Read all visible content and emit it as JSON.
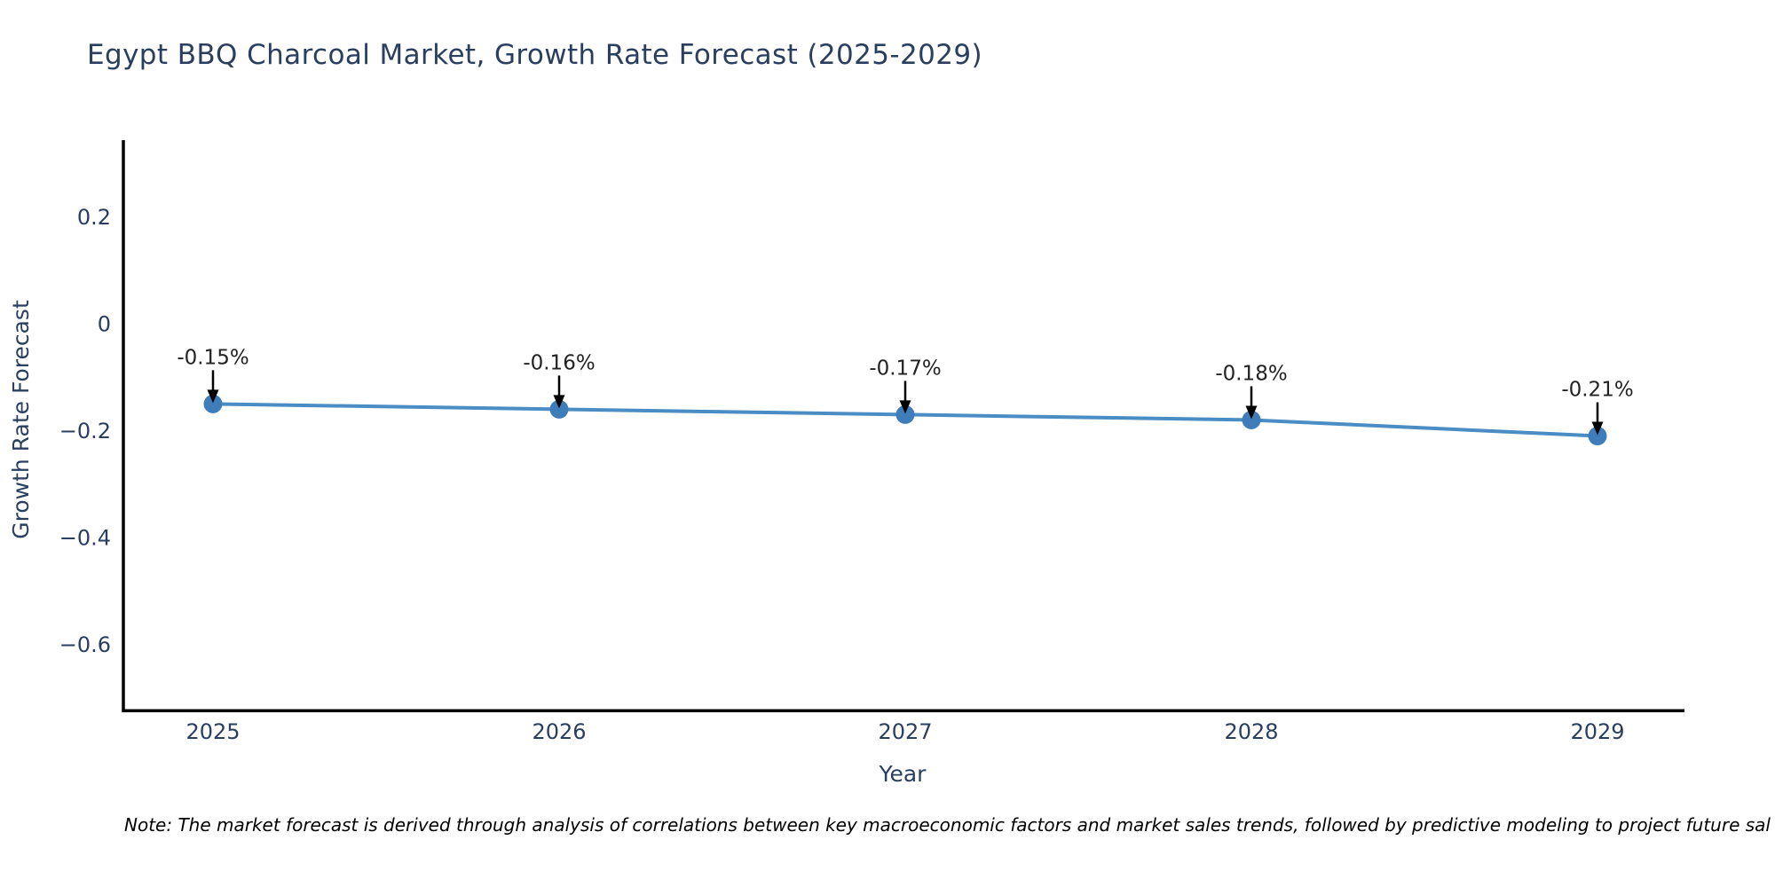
{
  "title": "Egypt BBQ Charcoal Market, Growth Rate Forecast (2025-2029)",
  "note": "Note: The market forecast is derived through analysis of correlations between key macroeconomic factors and market sales trends, followed by predictive modeling to project future sal",
  "chart_data": {
    "type": "line",
    "title": "Egypt BBQ Charcoal Market, Growth Rate Forecast (2025-2029)",
    "x": [
      2025,
      2026,
      2027,
      2028,
      2029
    ],
    "values": [
      -0.15,
      -0.16,
      -0.17,
      -0.18,
      -0.21
    ],
    "series": [
      {
        "name": "Growth Rate Forecast",
        "values": [
          -0.15,
          -0.16,
          -0.17,
          -0.18,
          -0.21
        ]
      }
    ],
    "point_labels": [
      "-0.15%",
      "-0.16%",
      "-0.17%",
      "-0.18%",
      "-0.21%"
    ],
    "xlabel": "Year",
    "ylabel": "Growth Rate Forecast",
    "xticks": [
      "2025",
      "2026",
      "2027",
      "2028",
      "2029"
    ],
    "yticks": [
      0.2,
      0,
      -0.2,
      -0.4,
      -0.6
    ],
    "ytick_labels": [
      "0.2",
      "0",
      "−0.2",
      "−0.4",
      "−0.6"
    ],
    "ylim": [
      -0.72,
      0.34
    ],
    "grid": false,
    "legend": "none",
    "colors": {
      "line": "#4a8cc4",
      "marker": "#3e7dba",
      "annotation_text": "#222222",
      "annotation_arrow": "#000000",
      "axis_spine": "#000000",
      "label": "#2a3f5f"
    }
  }
}
